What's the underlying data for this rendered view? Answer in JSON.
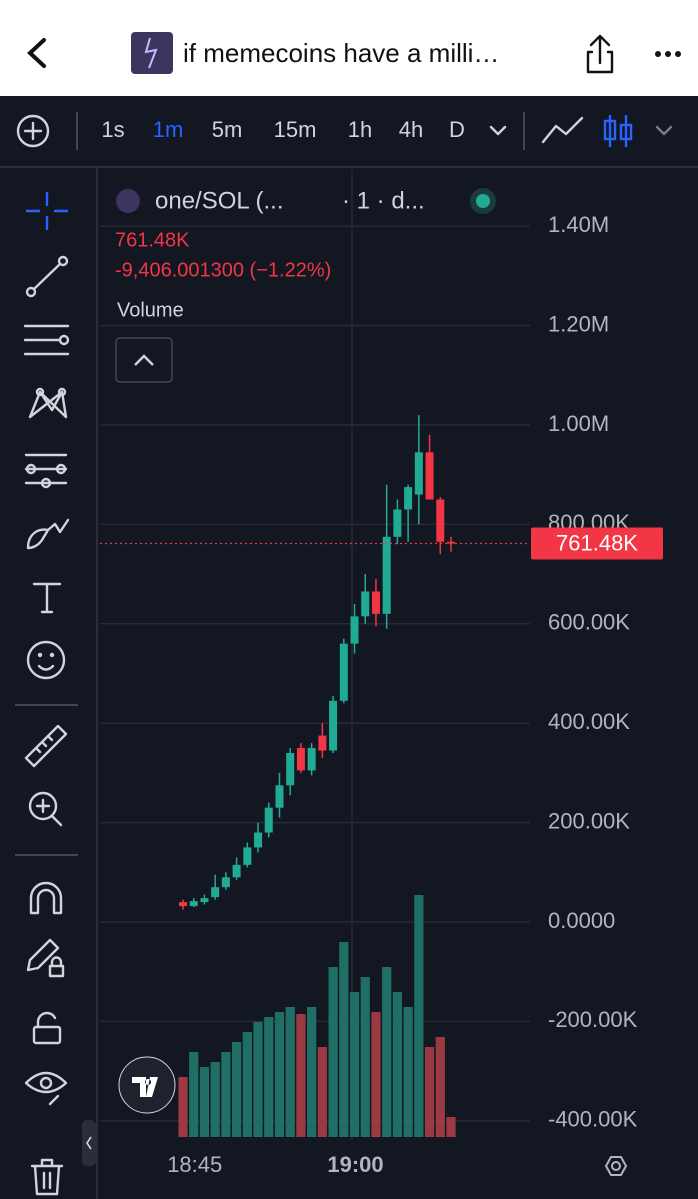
{
  "header": {
    "title": "if memecoins have a milli…"
  },
  "toolbar": {
    "timeframes": [
      "1s",
      "1m",
      "5m",
      "15m",
      "1h",
      "4h",
      "D"
    ],
    "selected": 1
  },
  "chart_data": {
    "type": "candlestick",
    "symbol": "one/SOL (...",
    "interval": "· 1 · d...",
    "last": {
      "value": 761480,
      "label": "761.48K"
    },
    "change": "-9,406.001300 (−1.22%)",
    "volume_label": "Volume",
    "up_color": "#22ab94",
    "down_color": "#f23645",
    "volume_up_color": "#1f6f66",
    "volume_down_color": "#9c3a44",
    "ylim": [
      -438600,
      1513000
    ],
    "yticks": [
      {
        "value": 1400000,
        "label": "1.40M"
      },
      {
        "value": 1200000,
        "label": "1.20M"
      },
      {
        "value": 1000000,
        "label": "1.00M"
      },
      {
        "value": 800000,
        "label": "800.00K"
      },
      {
        "value": 600000,
        "label": "600.00K"
      },
      {
        "value": 400000,
        "label": "400.00K"
      },
      {
        "value": 200000,
        "label": "200.00K"
      },
      {
        "value": 0,
        "label": "0.0000"
      },
      {
        "value": -200000,
        "label": "-200.00K"
      },
      {
        "value": -400000,
        "label": "-400.00K"
      }
    ],
    "grid": true,
    "x": [
      "18:44",
      "18:45",
      "18:46",
      "18:47",
      "18:48",
      "18:49",
      "18:50",
      "18:51",
      "18:52",
      "18:53",
      "18:54",
      "18:55",
      "18:56",
      "18:57",
      "18:58",
      "18:59",
      "19:00",
      "19:01",
      "19:02",
      "19:03",
      "19:04",
      "19:05",
      "19:06",
      "19:07",
      "19:08",
      "19:09"
    ],
    "xticks": [
      "18:45",
      "19:00"
    ],
    "candles": [
      {
        "o": 40000,
        "h": 45000,
        "l": 25000,
        "c": 32000,
        "v": 60
      },
      {
        "o": 32000,
        "h": 48000,
        "l": 30000,
        "c": 42000,
        "v": 85
      },
      {
        "o": 40000,
        "h": 55000,
        "l": 35000,
        "c": 48000,
        "v": 70
      },
      {
        "o": 50000,
        "h": 95000,
        "l": 45000,
        "c": 70000,
        "v": 75
      },
      {
        "o": 70000,
        "h": 100000,
        "l": 65000,
        "c": 90000,
        "v": 85
      },
      {
        "o": 90000,
        "h": 130000,
        "l": 85000,
        "c": 115000,
        "v": 95
      },
      {
        "o": 115000,
        "h": 160000,
        "l": 110000,
        "c": 150000,
        "v": 105
      },
      {
        "o": 150000,
        "h": 200000,
        "l": 140000,
        "c": 180000,
        "v": 115
      },
      {
        "o": 180000,
        "h": 240000,
        "l": 170000,
        "c": 230000,
        "v": 120
      },
      {
        "o": 230000,
        "h": 300000,
        "l": 210000,
        "c": 275000,
        "v": 125
      },
      {
        "o": 275000,
        "h": 350000,
        "l": 255000,
        "c": 340000,
        "v": 130
      },
      {
        "o": 350000,
        "h": 360000,
        "l": 300000,
        "c": 305000,
        "v": 123
      },
      {
        "o": 305000,
        "h": 360000,
        "l": 295000,
        "c": 350000,
        "v": 130
      },
      {
        "o": 375000,
        "h": 400000,
        "l": 330000,
        "c": 345000,
        "v": 90
      },
      {
        "o": 345000,
        "h": 455000,
        "l": 340000,
        "c": 445000,
        "v": 170
      },
      {
        "o": 445000,
        "h": 570000,
        "l": 440000,
        "c": 560000,
        "v": 195
      },
      {
        "o": 560000,
        "h": 640000,
        "l": 540000,
        "c": 615000,
        "v": 145
      },
      {
        "o": 615000,
        "h": 700000,
        "l": 600000,
        "c": 665000,
        "v": 160
      },
      {
        "o": 665000,
        "h": 690000,
        "l": 595000,
        "c": 620000,
        "v": 125
      },
      {
        "o": 620000,
        "h": 880000,
        "l": 590000,
        "c": 775000,
        "v": 170
      },
      {
        "o": 775000,
        "h": 850000,
        "l": 760000,
        "c": 830000,
        "v": 145
      },
      {
        "o": 830000,
        "h": 880000,
        "l": 765000,
        "c": 875000,
        "v": 130
      },
      {
        "o": 860000,
        "h": 1020000,
        "l": 800000,
        "c": 945000,
        "v": 242
      },
      {
        "o": 945000,
        "h": 980000,
        "l": 850000,
        "c": 850000,
        "v": 90
      },
      {
        "o": 850000,
        "h": 855000,
        "l": 740000,
        "c": 765000,
        "v": 100
      },
      {
        "o": 765000,
        "h": 775000,
        "l": 745000,
        "c": 761480,
        "v": 20
      }
    ]
  }
}
